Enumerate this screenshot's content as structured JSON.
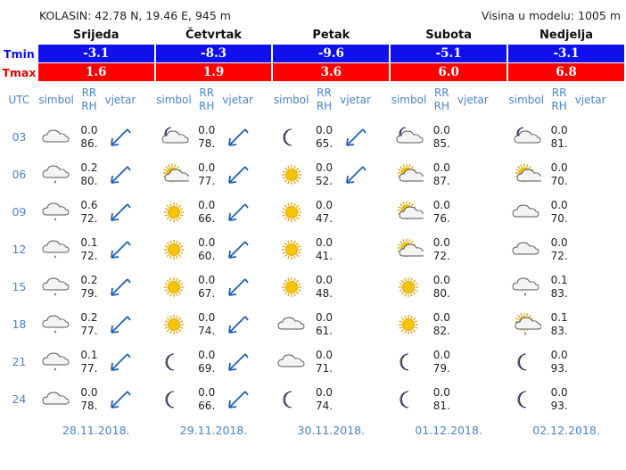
{
  "header": {
    "location": "KOLASIN: 42.78 N, 19.46 E, 945 m",
    "model_height": "Visina u modelu: 1005 m"
  },
  "labels": {
    "tmin": "Tmin",
    "tmax": "Tmax",
    "utc": "UTC",
    "symbol": "simbol",
    "rr": "RR",
    "rh": "RH",
    "wind": "vjetar"
  },
  "colors": {
    "tmin_bg": "#1010ee",
    "tmax_bg": "#ff0000",
    "header_text": "#4a84c5",
    "wind_arrow": "#1f5fb0"
  },
  "days": [
    {
      "name": "Srijeda",
      "tmin": "-3.1",
      "tmax": "1.6",
      "date": "28.11.2018.",
      "rows": [
        {
          "utc": "03",
          "icon": "cloud-icon",
          "rr": "0.0",
          "rh": "86.",
          "wind": "arrow-sw"
        },
        {
          "utc": "06",
          "icon": "cloud-drizzle-icon",
          "rr": "0.2",
          "rh": "80.",
          "wind": "arrow-sw"
        },
        {
          "utc": "09",
          "icon": "cloud-drizzle-icon",
          "rr": "0.6",
          "rh": "72.",
          "wind": "arrow-sw"
        },
        {
          "utc": "12",
          "icon": "cloud-drizzle-icon",
          "rr": "0.1",
          "rh": "72.",
          "wind": "arrow-sw"
        },
        {
          "utc": "15",
          "icon": "cloud-drizzle-icon",
          "rr": "0.2",
          "rh": "79.",
          "wind": "arrow-sw"
        },
        {
          "utc": "18",
          "icon": "cloud-drizzle-icon",
          "rr": "0.2",
          "rh": "77.",
          "wind": "arrow-sw"
        },
        {
          "utc": "21",
          "icon": "cloud-drizzle-icon",
          "rr": "0.1",
          "rh": "77.",
          "wind": "arrow-sw"
        },
        {
          "utc": "24",
          "icon": "cloud-icon",
          "rr": "0.0",
          "rh": "78.",
          "wind": "arrow-sw"
        }
      ]
    },
    {
      "name": "Četvrtak",
      "tmin": "-8.3",
      "tmax": "1.9",
      "date": "29.11.2018.",
      "rows": [
        {
          "utc": "03",
          "icon": "moon-cloud-icon",
          "rr": "0.0",
          "rh": "78.",
          "wind": "arrow-sw"
        },
        {
          "utc": "06",
          "icon": "sun-cloud-icon",
          "rr": "0.0",
          "rh": "77.",
          "wind": "arrow-sw"
        },
        {
          "utc": "09",
          "icon": "sun-icon",
          "rr": "0.0",
          "rh": "66.",
          "wind": "arrow-sw"
        },
        {
          "utc": "12",
          "icon": "sun-icon",
          "rr": "0.0",
          "rh": "60.",
          "wind": "arrow-sw"
        },
        {
          "utc": "15",
          "icon": "sun-icon",
          "rr": "0.0",
          "rh": "67.",
          "wind": "arrow-sw"
        },
        {
          "utc": "18",
          "icon": "sun-icon",
          "rr": "0.0",
          "rh": "74.",
          "wind": "arrow-sw"
        },
        {
          "utc": "21",
          "icon": "moon-icon",
          "rr": "0.0",
          "rh": "69.",
          "wind": "arrow-sw"
        },
        {
          "utc": "24",
          "icon": "moon-icon",
          "rr": "0.0",
          "rh": "66.",
          "wind": "arrow-sw"
        }
      ]
    },
    {
      "name": "Petak",
      "tmin": "-9.6",
      "tmax": "3.6",
      "date": "30.11.2018.",
      "rows": [
        {
          "utc": "03",
          "icon": "moon-icon",
          "rr": "0.0",
          "rh": "65.",
          "wind": "arrow-sw"
        },
        {
          "utc": "06",
          "icon": "sun-icon",
          "rr": "0.0",
          "rh": "52.",
          "wind": "arrow-sw"
        },
        {
          "utc": "09",
          "icon": "sun-icon",
          "rr": "0.0",
          "rh": "47.",
          "wind": ""
        },
        {
          "utc": "12",
          "icon": "sun-icon",
          "rr": "0.0",
          "rh": "41.",
          "wind": ""
        },
        {
          "utc": "15",
          "icon": "sun-icon",
          "rr": "0.0",
          "rh": "48.",
          "wind": ""
        },
        {
          "utc": "18",
          "icon": "cloud-icon",
          "rr": "0.0",
          "rh": "61.",
          "wind": ""
        },
        {
          "utc": "21",
          "icon": "cloud-icon",
          "rr": "0.0",
          "rh": "71.",
          "wind": ""
        },
        {
          "utc": "24",
          "icon": "moon-icon",
          "rr": "0.0",
          "rh": "74.",
          "wind": ""
        }
      ]
    },
    {
      "name": "Subota",
      "tmin": "-5.1",
      "tmax": "6.0",
      "date": "01.12.2018.",
      "rows": [
        {
          "utc": "03",
          "icon": "moon-cloud-icon",
          "rr": "0.0",
          "rh": "85.",
          "wind": ""
        },
        {
          "utc": "06",
          "icon": "sun-cloud-icon",
          "rr": "0.0",
          "rh": "87.",
          "wind": ""
        },
        {
          "utc": "09",
          "icon": "sun-cloud-icon",
          "rr": "0.0",
          "rh": "76.",
          "wind": ""
        },
        {
          "utc": "12",
          "icon": "sun-cloud-icon",
          "rr": "0.0",
          "rh": "72.",
          "wind": ""
        },
        {
          "utc": "15",
          "icon": "sun-icon",
          "rr": "0.0",
          "rh": "80.",
          "wind": ""
        },
        {
          "utc": "18",
          "icon": "sun-icon",
          "rr": "0.0",
          "rh": "82.",
          "wind": ""
        },
        {
          "utc": "21",
          "icon": "moon-icon",
          "rr": "0.0",
          "rh": "79.",
          "wind": ""
        },
        {
          "utc": "24",
          "icon": "moon-icon",
          "rr": "0.0",
          "rh": "81.",
          "wind": ""
        }
      ]
    },
    {
      "name": "Nedjelja",
      "tmin": "-3.1",
      "tmax": "6.8",
      "date": "02.12.2018.",
      "rows": [
        {
          "utc": "03",
          "icon": "moon-cloud-icon",
          "rr": "0.0",
          "rh": "81.",
          "wind": ""
        },
        {
          "utc": "06",
          "icon": "sun-cloud-icon",
          "rr": "0.0",
          "rh": "70.",
          "wind": ""
        },
        {
          "utc": "09",
          "icon": "cloud-icon",
          "rr": "0.0",
          "rh": "70.",
          "wind": ""
        },
        {
          "utc": "12",
          "icon": "cloud-icon",
          "rr": "0.0",
          "rh": "72.",
          "wind": ""
        },
        {
          "utc": "15",
          "icon": "cloud-drizzle-icon",
          "rr": "0.1",
          "rh": "83.",
          "wind": ""
        },
        {
          "utc": "18",
          "icon": "sun-cloud-rain-icon",
          "rr": "0.1",
          "rh": "83.",
          "wind": ""
        },
        {
          "utc": "21",
          "icon": "moon-icon",
          "rr": "0.0",
          "rh": "93.",
          "wind": ""
        },
        {
          "utc": "24",
          "icon": "moon-icon",
          "rr": "0.0",
          "rh": "93.",
          "wind": ""
        }
      ]
    }
  ]
}
